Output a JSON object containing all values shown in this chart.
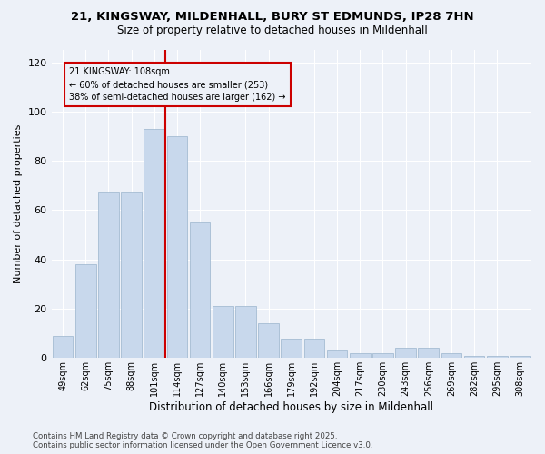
{
  "title_line1": "21, KINGSWAY, MILDENHALL, BURY ST EDMUNDS, IP28 7HN",
  "title_line2": "Size of property relative to detached houses in Mildenhall",
  "xlabel": "Distribution of detached houses by size in Mildenhall",
  "ylabel": "Number of detached properties",
  "bar_labels": [
    "49sqm",
    "62sqm",
    "75sqm",
    "88sqm",
    "101sqm",
    "114sqm",
    "127sqm",
    "140sqm",
    "153sqm",
    "166sqm",
    "179sqm",
    "192sqm",
    "204sqm",
    "217sqm",
    "230sqm",
    "243sqm",
    "256sqm",
    "269sqm",
    "282sqm",
    "295sqm",
    "308sqm"
  ],
  "bar_values": [
    9,
    38,
    67,
    67,
    93,
    90,
    55,
    21,
    21,
    14,
    8,
    8,
    3,
    2,
    2,
    4,
    4,
    2,
    1,
    1,
    1
  ],
  "bar_color": "#c8d8ec",
  "bar_edgecolor": "#9ab4cc",
  "annotation_title": "21 KINGSWAY: 108sqm",
  "annotation_line2": "← 60% of detached houses are smaller (253)",
  "annotation_line3": "38% of semi-detached houses are larger (162) →",
  "annotation_box_color": "#cc0000",
  "ref_line_bar_index": 4,
  "ylim": [
    0,
    125
  ],
  "yticks": [
    0,
    20,
    40,
    60,
    80,
    100,
    120
  ],
  "background_color": "#edf1f8",
  "grid_color": "#ffffff",
  "footer_line1": "Contains HM Land Registry data © Crown copyright and database right 2025.",
  "footer_line2": "Contains public sector information licensed under the Open Government Licence v3.0."
}
